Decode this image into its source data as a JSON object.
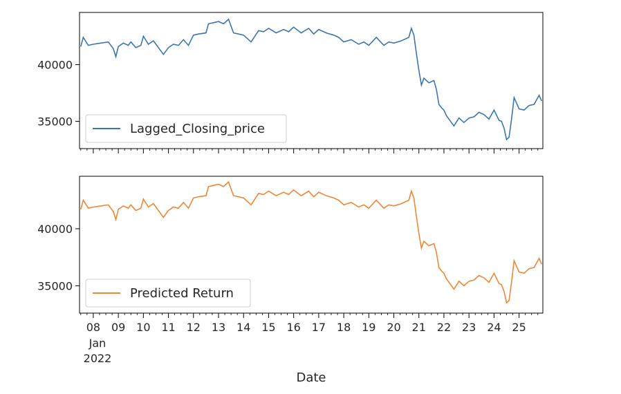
{
  "chart_data": [
    {
      "type": "line",
      "ylim": [
        32600,
        44600
      ],
      "yticks": [
        35000,
        40000
      ],
      "ytick_labels": [
        "35000",
        "40000"
      ],
      "legend": "lower-left",
      "series": [
        {
          "name": "Lagged_Closing_price",
          "color": "#3b75af",
          "x": [
            7.5,
            7.6,
            7.8,
            8.0,
            8.3,
            8.6,
            8.8,
            8.9,
            9.0,
            9.2,
            9.4,
            9.5,
            9.7,
            9.9,
            10.0,
            10.2,
            10.4,
            10.6,
            10.8,
            11.0,
            11.2,
            11.4,
            11.6,
            11.8,
            12.0,
            12.2,
            12.5,
            12.6,
            12.8,
            13.0,
            13.2,
            13.4,
            13.6,
            13.8,
            14.0,
            14.3,
            14.6,
            14.8,
            15.0,
            15.3,
            15.6,
            15.8,
            16.0,
            16.3,
            16.6,
            16.8,
            17.0,
            17.3,
            17.6,
            17.8,
            18.0,
            18.3,
            18.6,
            18.8,
            19.0,
            19.3,
            19.6,
            19.8,
            20.0,
            20.3,
            20.6,
            20.7,
            20.8,
            20.9,
            21.0,
            21.1,
            21.2,
            21.4,
            21.6,
            21.7,
            21.8,
            21.9,
            22.0,
            22.1,
            22.2,
            22.4,
            22.6,
            22.8,
            23.0,
            23.2,
            23.4,
            23.6,
            23.8,
            24.0,
            24.2,
            24.3,
            24.4,
            24.5,
            24.6,
            24.7,
            24.8,
            25.0,
            25.2,
            25.4,
            25.6,
            25.8,
            25.9
          ],
          "y": [
            41600,
            42400,
            41700,
            41800,
            41900,
            42000,
            41400,
            40700,
            41600,
            41900,
            41700,
            42000,
            41500,
            41700,
            42500,
            41800,
            42100,
            41500,
            40900,
            41500,
            41800,
            41700,
            42200,
            41700,
            42600,
            42700,
            42800,
            43600,
            43700,
            43800,
            43600,
            44000,
            42800,
            42700,
            42600,
            42000,
            43000,
            42900,
            43200,
            42800,
            43100,
            42900,
            43300,
            42800,
            43200,
            42700,
            43100,
            42800,
            42600,
            42400,
            42000,
            42200,
            41800,
            42000,
            41700,
            42400,
            41700,
            42000,
            41900,
            42100,
            42400,
            43200,
            42600,
            41000,
            39500,
            38200,
            38800,
            38400,
            38600,
            37800,
            36500,
            36200,
            36000,
            35500,
            35200,
            34600,
            35300,
            34900,
            35300,
            35400,
            35800,
            35600,
            35200,
            36000,
            35100,
            35000,
            34400,
            33400,
            33600,
            35200,
            37100,
            36100,
            36000,
            36400,
            36500,
            37300,
            36800
          ]
        }
      ]
    },
    {
      "type": "line",
      "ylim": [
        32600,
        44600
      ],
      "yticks": [
        35000,
        40000
      ],
      "ytick_labels": [
        "35000",
        "40000"
      ],
      "legend": "lower-left",
      "xlim": [
        7.45,
        25.95
      ],
      "xticks": [
        8,
        9,
        10,
        11,
        12,
        13,
        14,
        15,
        16,
        17,
        18,
        19,
        20,
        21,
        22,
        23,
        24,
        25
      ],
      "xtick_labels": [
        "08",
        "09",
        "10",
        "11",
        "12",
        "13",
        "14",
        "15",
        "16",
        "17",
        "18",
        "19",
        "20",
        "21",
        "22",
        "23",
        "24",
        "25"
      ],
      "xtick_sub": [
        "Jan",
        "2022"
      ],
      "xlabel": "Date",
      "series": [
        {
          "name": "Predicted Return",
          "color": "#ef8636",
          "x": [
            7.5,
            7.6,
            7.8,
            8.0,
            8.3,
            8.6,
            8.8,
            8.9,
            9.0,
            9.2,
            9.4,
            9.5,
            9.7,
            9.9,
            10.0,
            10.2,
            10.4,
            10.6,
            10.8,
            11.0,
            11.2,
            11.4,
            11.6,
            11.8,
            12.0,
            12.2,
            12.5,
            12.6,
            12.8,
            13.0,
            13.2,
            13.4,
            13.6,
            13.8,
            14.0,
            14.3,
            14.6,
            14.8,
            15.0,
            15.3,
            15.6,
            15.8,
            16.0,
            16.3,
            16.6,
            16.8,
            17.0,
            17.3,
            17.6,
            17.8,
            18.0,
            18.3,
            18.6,
            18.8,
            19.0,
            19.3,
            19.6,
            19.8,
            20.0,
            20.3,
            20.6,
            20.7,
            20.8,
            20.9,
            21.0,
            21.1,
            21.2,
            21.4,
            21.6,
            21.7,
            21.8,
            21.9,
            22.0,
            22.1,
            22.2,
            22.4,
            22.6,
            22.8,
            23.0,
            23.2,
            23.4,
            23.6,
            23.8,
            24.0,
            24.2,
            24.3,
            24.4,
            24.5,
            24.6,
            24.7,
            24.8,
            25.0,
            25.2,
            25.4,
            25.6,
            25.8,
            25.9
          ],
          "y": [
            41700,
            42500,
            41800,
            41900,
            42000,
            42100,
            41500,
            40800,
            41700,
            42000,
            41800,
            42100,
            41600,
            41800,
            42600,
            41900,
            42200,
            41600,
            41000,
            41600,
            41900,
            41800,
            42300,
            41800,
            42700,
            42800,
            42900,
            43700,
            43800,
            43900,
            43700,
            44100,
            42900,
            42800,
            42700,
            42100,
            43100,
            43000,
            43300,
            42900,
            43200,
            43000,
            43400,
            42900,
            43300,
            42800,
            43200,
            42900,
            42700,
            42500,
            42100,
            42300,
            41900,
            42100,
            41800,
            42500,
            41800,
            42100,
            42000,
            42200,
            42500,
            43300,
            42700,
            41100,
            39600,
            38300,
            38900,
            38500,
            38700,
            37900,
            36600,
            36300,
            36100,
            35600,
            35300,
            34700,
            35400,
            35000,
            35400,
            35500,
            35900,
            35700,
            35300,
            36100,
            35200,
            35100,
            34500,
            33500,
            33700,
            35300,
            37200,
            36200,
            36100,
            36500,
            36600,
            37400,
            36900
          ]
        }
      ]
    }
  ]
}
